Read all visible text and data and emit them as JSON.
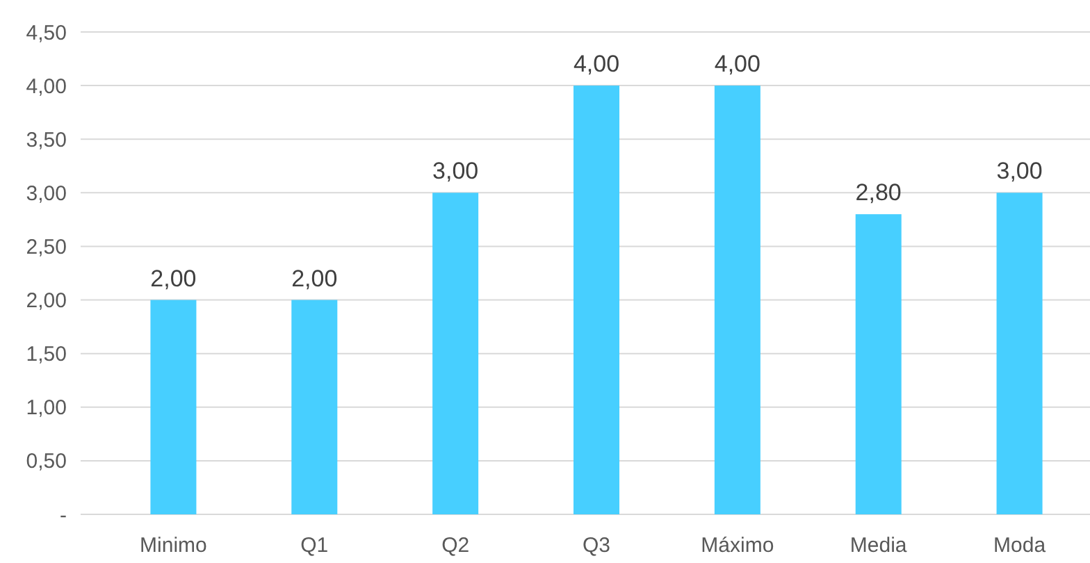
{
  "chart_data": {
    "type": "bar",
    "categories": [
      "Minimo",
      "Q1",
      "Q2",
      "Q3",
      "Máximo",
      "Media",
      "Moda"
    ],
    "values": [
      2,
      2,
      3,
      4,
      4,
      2.8,
      3
    ],
    "value_labels": [
      "2,00",
      "2,00",
      "3,00",
      "4,00",
      "4,00",
      "2,80",
      "3,00"
    ],
    "color": "#47cfff",
    "ylim": [
      0,
      4.5
    ],
    "yticks": [
      {
        "value": 0,
        "label": "-"
      },
      {
        "value": 0.5,
        "label": "0,50"
      },
      {
        "value": 1,
        "label": "1,00"
      },
      {
        "value": 1.5,
        "label": "1,50"
      },
      {
        "value": 2,
        "label": "2,00"
      },
      {
        "value": 2.5,
        "label": "2,50"
      },
      {
        "value": 3,
        "label": "3,00"
      },
      {
        "value": 3.5,
        "label": "3,50"
      },
      {
        "value": 4,
        "label": "4,00"
      },
      {
        "value": 4.5,
        "label": "4,50"
      }
    ],
    "grid": "y"
  }
}
